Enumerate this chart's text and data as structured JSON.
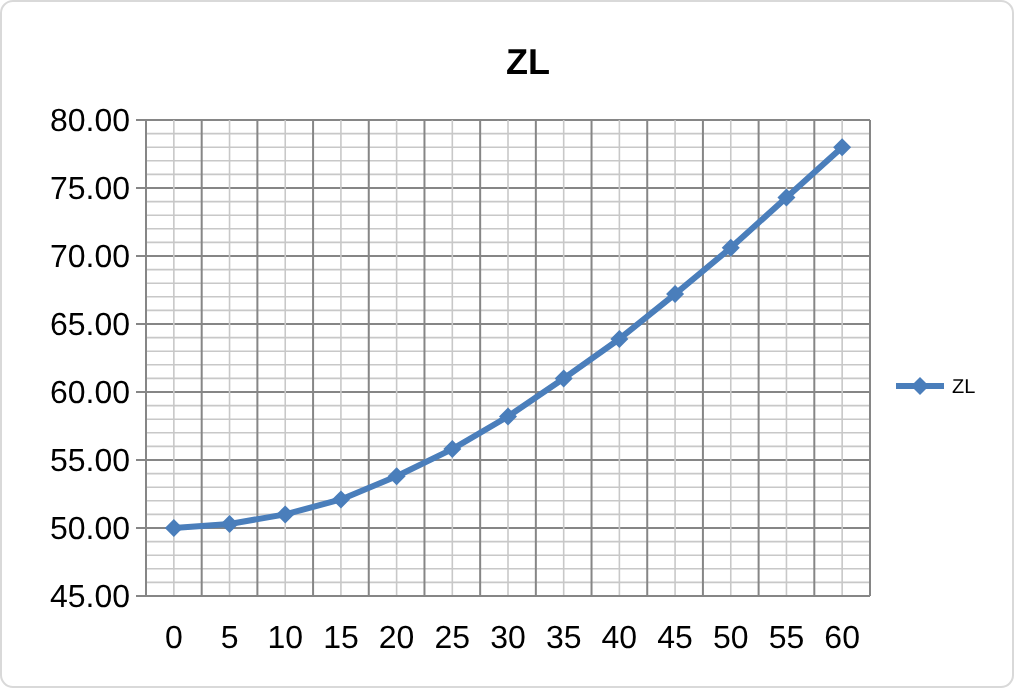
{
  "chart_data": {
    "type": "line",
    "title": "ZL",
    "categories": [
      "0",
      "5",
      "10",
      "15",
      "20",
      "25",
      "30",
      "35",
      "40",
      "45",
      "50",
      "55",
      "60"
    ],
    "series": [
      {
        "name": "ZL",
        "color": "#4a7ebb",
        "values": [
          50.0,
          50.3,
          51.0,
          52.1,
          53.8,
          55.8,
          58.2,
          61.0,
          63.9,
          67.2,
          70.6,
          74.3,
          78.0
        ]
      }
    ],
    "ylim": [
      45,
      80
    ],
    "yticks": [
      {
        "value": 45,
        "label": "45.00"
      },
      {
        "value": 50,
        "label": "50.00"
      },
      {
        "value": 55,
        "label": "55.00"
      },
      {
        "value": 60,
        "label": "60.00"
      },
      {
        "value": 65,
        "label": "65.00"
      },
      {
        "value": 70,
        "label": "70.00"
      },
      {
        "value": 75,
        "label": "75.00"
      },
      {
        "value": 80,
        "label": "80.00"
      }
    ],
    "grid": true,
    "legend": "right",
    "marker": "diamond",
    "line_style": "solid"
  }
}
